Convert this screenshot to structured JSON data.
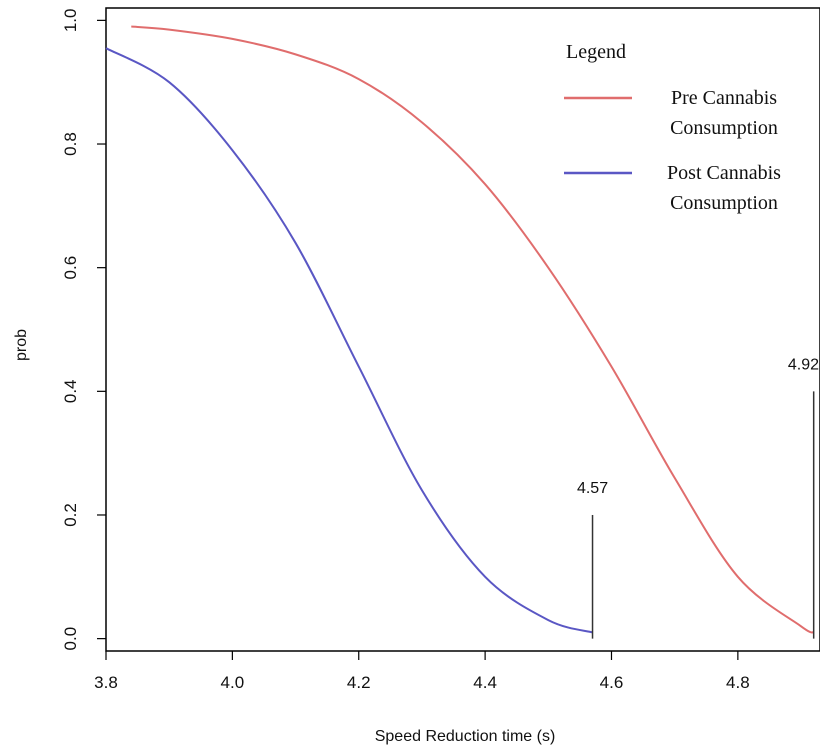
{
  "chart_data": {
    "type": "line",
    "title": "",
    "xlabel": "Speed Reduction time (s)",
    "ylabel": "prob",
    "xlim": [
      3.8,
      4.93
    ],
    "ylim": [
      -0.02,
      1.02
    ],
    "xticks": [
      "3.8",
      "4.0",
      "4.2",
      "4.4",
      "4.6",
      "4.8"
    ],
    "yticks": [
      "0.0",
      "0.2",
      "0.4",
      "0.6",
      "0.8",
      "1.0"
    ],
    "grid": false,
    "legend": {
      "title": "Legend",
      "placement": "top-right",
      "entries": [
        {
          "lines": [
            "Pre Cannabis",
            "Consumption"
          ],
          "color": "#e06d6d"
        },
        {
          "lines": [
            "Post Cannabis",
            "Consumption"
          ],
          "color": "#5a57c4"
        }
      ]
    },
    "series": [
      {
        "color": "#e06d6d",
        "x": [
          3.84,
          3.9,
          4.0,
          4.1,
          4.2,
          4.3,
          4.4,
          4.5,
          4.6,
          4.7,
          4.8,
          4.9,
          4.92
        ],
        "y": [
          0.99,
          0.985,
          0.97,
          0.945,
          0.905,
          0.835,
          0.735,
          0.6,
          0.44,
          0.26,
          0.1,
          0.02,
          0.01
        ]
      },
      {
        "color": "#5a57c4",
        "x": [
          3.8,
          3.9,
          4.0,
          4.1,
          4.2,
          4.3,
          4.4,
          4.5,
          4.57
        ],
        "y": [
          0.955,
          0.9,
          0.79,
          0.64,
          0.44,
          0.24,
          0.1,
          0.03,
          0.01
        ]
      }
    ],
    "annotations": [
      {
        "text": "4.57",
        "x": 4.57,
        "y_top": 0.2
      },
      {
        "text": "4.92",
        "x": 4.92,
        "y_top": 0.4
      }
    ]
  }
}
